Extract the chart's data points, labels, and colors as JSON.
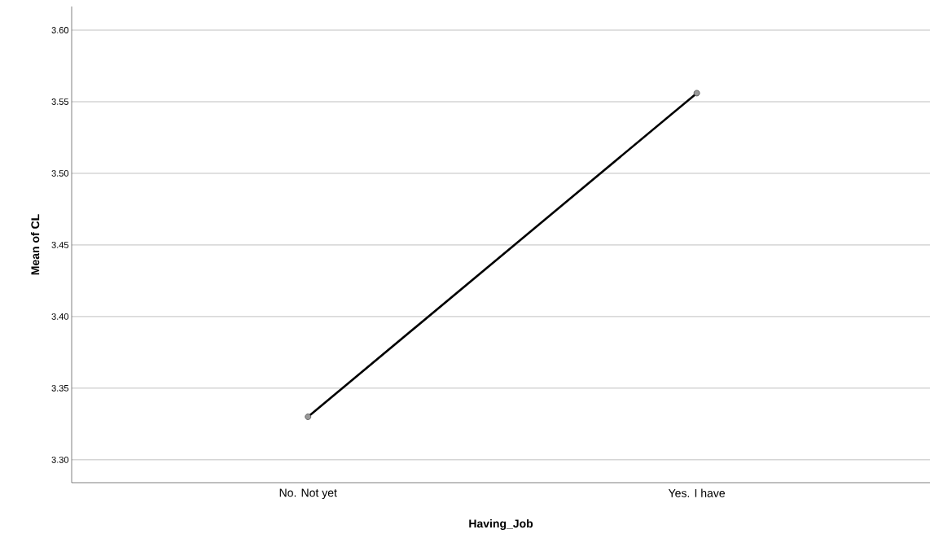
{
  "chart_data": {
    "type": "line",
    "xlabel": "Having_Job",
    "ylabel": "Mean of CL",
    "categories": [
      "No. Not yet",
      "Yes. I have"
    ],
    "series": [
      {
        "color": "#000000",
        "values": [
          3.33,
          3.556
        ]
      }
    ],
    "ylim": [
      3.284,
      3.6165
    ],
    "yticks": [
      {
        "value": 3.3,
        "label": "3.30"
      },
      {
        "value": 3.35,
        "label": "3.35"
      },
      {
        "value": 3.4,
        "label": "3.40"
      },
      {
        "value": 3.45,
        "label": "3.45"
      },
      {
        "value": 3.5,
        "label": "3.50"
      },
      {
        "value": 3.55,
        "label": "3.55"
      },
      {
        "value": 3.6,
        "label": "3.60"
      }
    ],
    "grid": "y",
    "marker": "circle",
    "line_style": "solid"
  }
}
